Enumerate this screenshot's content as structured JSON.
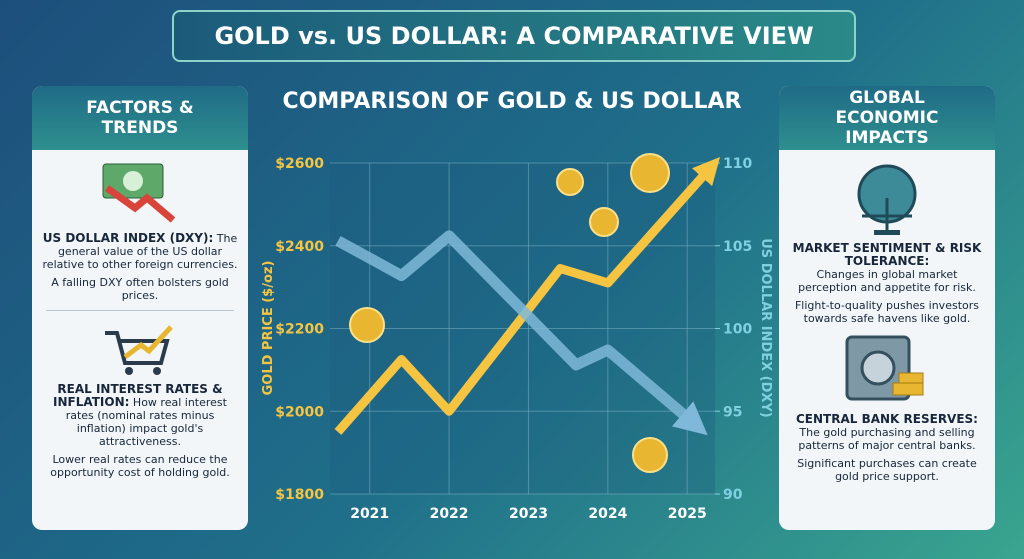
{
  "header": {
    "title": "GOLD vs. US DOLLAR: A COMPARATIVE VIEW"
  },
  "left_panel": {
    "title": "FACTORS & TRENDS",
    "items": [
      {
        "heading": "US DOLLAR INDEX (DXY):",
        "text": "The general value of the US dollar relative to other foreign currencies.",
        "note": "A falling DXY often bolsters gold prices."
      },
      {
        "heading": "REAL INTEREST RATES & INFLATION:",
        "text": "How real interest rates (nominal rates minus inflation) impact gold's attractiveness.",
        "note": "Lower real rates can reduce the opportunity cost of holding gold."
      }
    ]
  },
  "right_panel": {
    "title": "GLOBAL ECONOMIC IMPACTS",
    "items": [
      {
        "heading": "MARKET SENTIMENT & RISK TOLERANCE:",
        "text": "Changes in global market perception and appetite for risk.",
        "note": "Flight-to-quality pushes investors towards safe havens like gold."
      },
      {
        "heading": "CENTRAL BANK RESERVES:",
        "text": "The gold purchasing and selling patterns of major central banks.",
        "note": "Significant purchases can create gold price support."
      }
    ]
  },
  "chart_data": {
    "type": "line",
    "title": "COMPARISON OF GOLD & US DOLLAR",
    "y_label": "GOLD PRICE ($/oz)",
    "y2_label": "US DOLLAR INDEX (DXY)",
    "xlim": [
      2020.5,
      2025.35
    ],
    "xticks": [
      2021,
      2022,
      2023,
      2024,
      2025
    ],
    "ylim": [
      1800,
      2600
    ],
    "yticks": [
      {
        "value": 1800,
        "label": "$1800"
      },
      {
        "value": 2000,
        "label": "$2000"
      },
      {
        "value": 2200,
        "label": "$2200"
      },
      {
        "value": 2400,
        "label": "$2400"
      },
      {
        "value": 2600,
        "label": "$2600"
      }
    ],
    "y2lim": [
      90,
      110
    ],
    "y2ticks": [
      90,
      95,
      100,
      105,
      110
    ],
    "grid": true,
    "series": [
      {
        "color": "#f5c542",
        "x": [
          2020.6,
          2021.4,
          2022,
          2023.4,
          2024,
          2025.3
        ],
        "values": [
          1950,
          2125,
          2000,
          2345,
          2310,
          2590
        ]
      },
      {
        "color": "#7fb8d8",
        "axis": "y2",
        "x": [
          2020.6,
          2021.4,
          2022,
          2023.6,
          2024,
          2025.1
        ],
        "values": [
          105.3,
          103.2,
          105.6,
          97.8,
          98.7,
          94.2
        ]
      }
    ]
  }
}
